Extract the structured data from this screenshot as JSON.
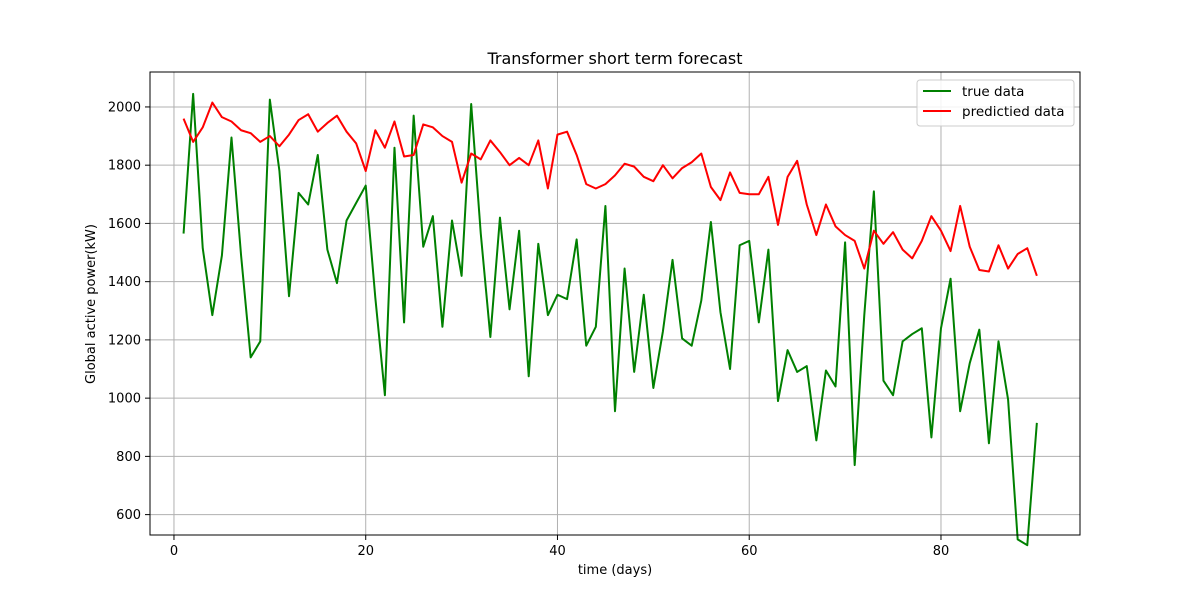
{
  "chart_data": {
    "type": "line",
    "title": "Transformer short term forecast",
    "xlabel": "time (days)",
    "ylabel": "Global active power(kW)",
    "xlim": [
      -2.5,
      94.5
    ],
    "ylim": [
      530,
      2120
    ],
    "xticks": [
      0,
      20,
      40,
      60,
      80
    ],
    "yticks": [
      600,
      800,
      1000,
      1200,
      1400,
      1600,
      1800,
      2000
    ],
    "grid": true,
    "legend_position": "top-right",
    "series": [
      {
        "name": "true data",
        "color": "#008000",
        "x": [
          1,
          2,
          3,
          4,
          5,
          6,
          7,
          8,
          9,
          10,
          11,
          12,
          13,
          14,
          15,
          16,
          17,
          18,
          19,
          20,
          21,
          22,
          23,
          24,
          25,
          26,
          27,
          28,
          29,
          30,
          31,
          32,
          33,
          34,
          35,
          36,
          37,
          38,
          39,
          40,
          41,
          42,
          43,
          44,
          45,
          46,
          47,
          48,
          49,
          50,
          51,
          52,
          53,
          54,
          55,
          56,
          57,
          58,
          59,
          60,
          61,
          62,
          63,
          64,
          65,
          66,
          67,
          68,
          69,
          70,
          71,
          72,
          73,
          74,
          75,
          76,
          77,
          78,
          79,
          80,
          81,
          82,
          83,
          84,
          85,
          86,
          87,
          88,
          89,
          90
        ],
        "values": [
          1565,
          2045,
          1515,
          1285,
          1490,
          1895,
          1490,
          1140,
          1195,
          2025,
          1780,
          1350,
          1705,
          1665,
          1835,
          1510,
          1395,
          1610,
          1670,
          1730,
          1345,
          1010,
          1860,
          1260,
          1970,
          1520,
          1625,
          1245,
          1610,
          1420,
          2010,
          1565,
          1210,
          1620,
          1305,
          1575,
          1075,
          1530,
          1285,
          1355,
          1340,
          1545,
          1180,
          1245,
          1660,
          955,
          1445,
          1090,
          1355,
          1035,
          1230,
          1475,
          1205,
          1180,
          1335,
          1605,
          1295,
          1100,
          1525,
          1540,
          1260,
          1510,
          990,
          1165,
          1090,
          1110,
          855,
          1095,
          1040,
          1535,
          770,
          1285,
          1710,
          1060,
          1010,
          1195,
          1220,
          1240,
          865,
          1240,
          1410,
          955,
          1120,
          1235,
          845,
          1195,
          995,
          515,
          495,
          915
        ]
      },
      {
        "name": "predictied data",
        "color": "#ff0000",
        "x": [
          1,
          2,
          3,
          4,
          5,
          6,
          7,
          8,
          9,
          10,
          11,
          12,
          13,
          14,
          15,
          16,
          17,
          18,
          19,
          20,
          21,
          22,
          23,
          24,
          25,
          26,
          27,
          28,
          29,
          30,
          31,
          32,
          33,
          34,
          35,
          36,
          37,
          38,
          39,
          40,
          41,
          42,
          43,
          44,
          45,
          46,
          47,
          48,
          49,
          50,
          51,
          52,
          53,
          54,
          55,
          56,
          57,
          58,
          59,
          60,
          61,
          62,
          63,
          64,
          65,
          66,
          67,
          68,
          69,
          70,
          71,
          72,
          73,
          74,
          75,
          76,
          77,
          78,
          79,
          80,
          81,
          82,
          83,
          84,
          85,
          86,
          87,
          88,
          89,
          90
        ],
        "values": [
          1960,
          1880,
          1930,
          2015,
          1965,
          1950,
          1920,
          1910,
          1880,
          1900,
          1865,
          1905,
          1955,
          1975,
          1915,
          1945,
          1970,
          1915,
          1875,
          1780,
          1920,
          1860,
          1950,
          1830,
          1835,
          1940,
          1930,
          1900,
          1880,
          1740,
          1840,
          1820,
          1885,
          1845,
          1800,
          1825,
          1800,
          1885,
          1720,
          1905,
          1915,
          1835,
          1735,
          1720,
          1735,
          1765,
          1805,
          1795,
          1760,
          1745,
          1800,
          1755,
          1790,
          1810,
          1840,
          1725,
          1680,
          1775,
          1705,
          1700,
          1700,
          1760,
          1595,
          1760,
          1815,
          1665,
          1560,
          1665,
          1590,
          1560,
          1540,
          1445,
          1575,
          1530,
          1570,
          1510,
          1480,
          1540,
          1625,
          1575,
          1505,
          1660,
          1520,
          1440,
          1435,
          1525,
          1445,
          1495,
          1515,
          1420
        ]
      }
    ]
  }
}
